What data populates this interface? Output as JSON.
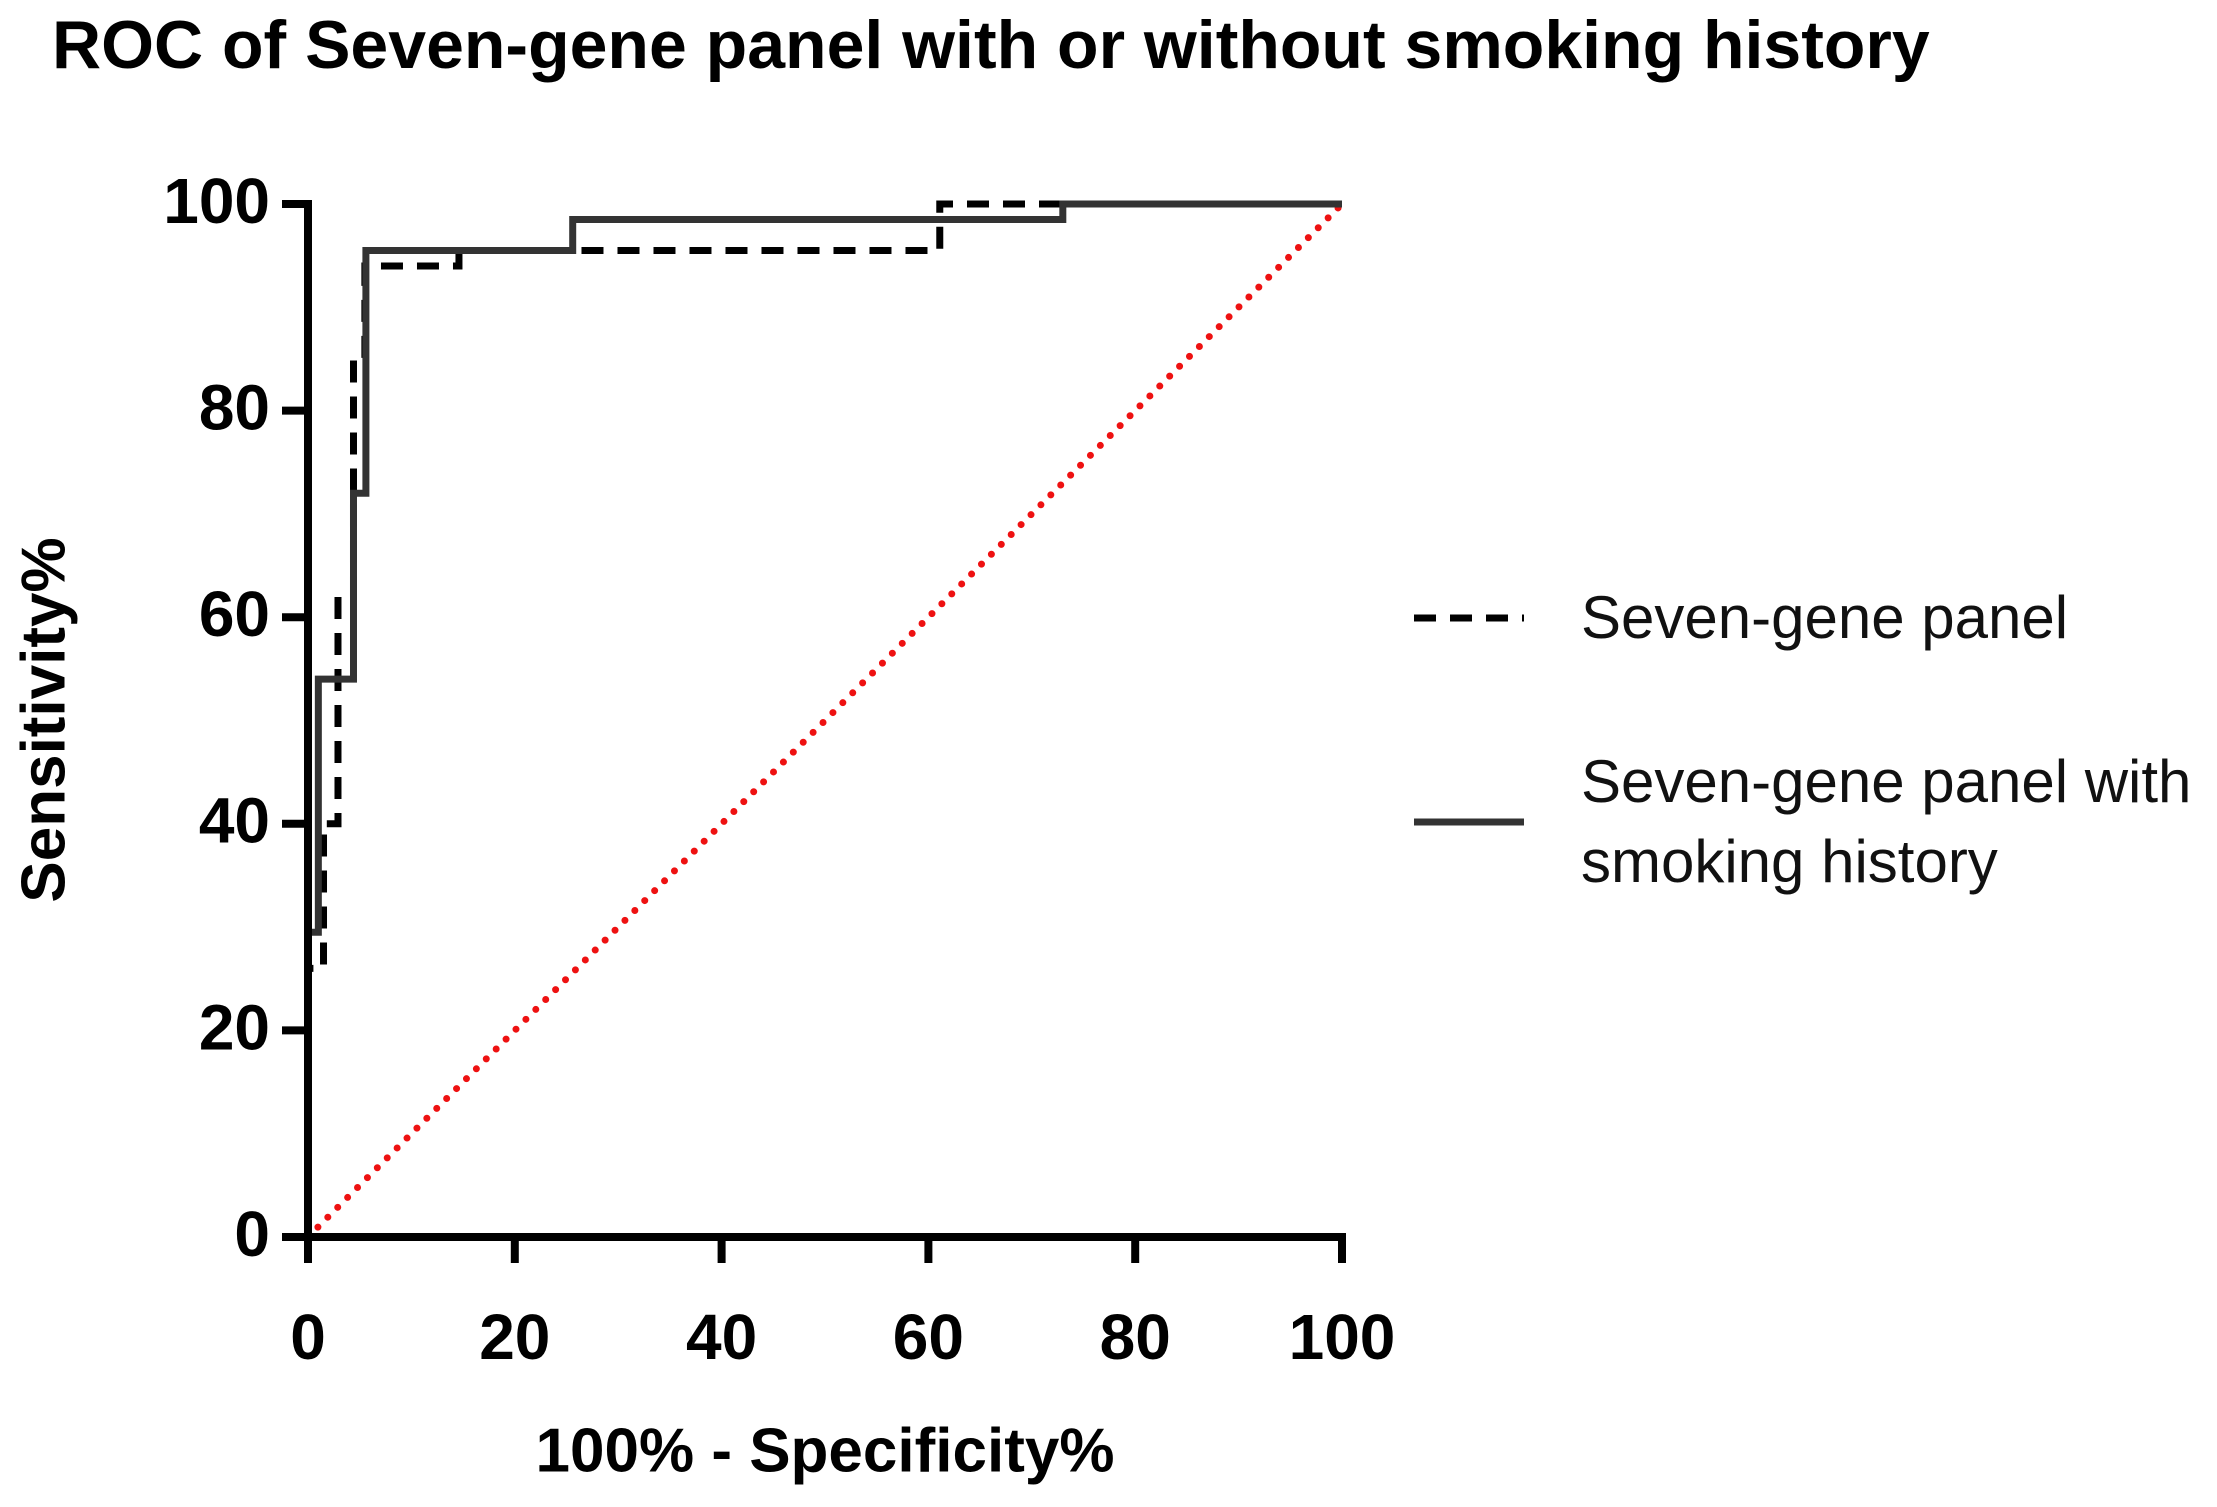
{
  "chart_data": {
    "type": "line",
    "title": "ROC of Seven-gene panel with or without smoking history",
    "x_label": "100% - Specificity%",
    "y_label": "Sensitivity%",
    "xlim": [
      0,
      100
    ],
    "ylim": [
      0,
      100
    ],
    "xticks": [
      0,
      20,
      40,
      60,
      80,
      100
    ],
    "yticks": [
      0,
      20,
      40,
      60,
      80,
      100
    ],
    "legend": "right",
    "series": [
      {
        "name": "Seven-gene panel",
        "color": "#000000",
        "dash": "dashed",
        "x": [
          0,
          0,
          1.5,
          1.5,
          2.9,
          2.9,
          4.4,
          4.4,
          5.5,
          5.5,
          14.6,
          14.6,
          61.1,
          61.1,
          100
        ],
        "values": [
          0,
          26,
          26,
          40,
          40,
          62,
          62,
          85,
          85,
          94,
          94,
          95.5,
          95.5,
          100,
          100
        ]
      },
      {
        "name": "Seven-gene panel with smoking history",
        "color": "#333333",
        "dash": "solid",
        "x": [
          0,
          0,
          1,
          1,
          4.4,
          4.4,
          5.6,
          5.6,
          25.6,
          25.6,
          73,
          73,
          100
        ],
        "values": [
          0,
          29.5,
          29.5,
          54,
          54,
          72,
          72,
          95.5,
          95.5,
          98.5,
          98.5,
          100,
          100
        ]
      }
    ],
    "diagonal": {
      "color": "#ee1111",
      "dash": "dotted",
      "x": [
        0,
        100
      ],
      "values": [
        0,
        100
      ]
    }
  }
}
